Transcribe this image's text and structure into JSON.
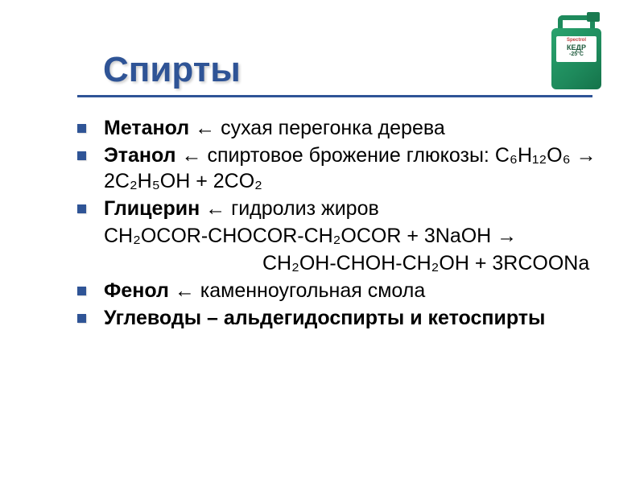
{
  "title": "Спирты",
  "title_color": "#2f5496",
  "title_fontsize": 44,
  "underline_color": "#2f5496",
  "bullet_color": "#2f5496",
  "body_fontsize": 25,
  "bullets": [
    {
      "label": "",
      "lead": "Метанол",
      "rest": " ← сухая перегонка дерева"
    },
    {
      "label": "",
      "lead": "Этанол",
      "rest": " ← спиртовое брожение глюкозы: C₆H₁₂O₆ → 2C₂H₅OH + 2CO₂"
    },
    {
      "label": "",
      "lead": "Глицерин",
      "rest": " ← гидролиз жиров"
    }
  ],
  "reaction_line1": "CH₂OCOR-CHOCOR-CH₂OCOR + 3NaOH →",
  "reaction_line2": "CH₂OH-CHOH-CH₂OH + 3RCOONa",
  "bullets2": [
    {
      "lead": "Фенол",
      "rest": " ← каменноугольная смола"
    },
    {
      "lead": "Углеводы – альдегидоспирты и кетоспирты",
      "rest": ""
    }
  ],
  "product": {
    "brand": "Spectrol",
    "name": "КЕДР",
    "temp": "-25°C",
    "body_color": "#1e8a5c"
  }
}
